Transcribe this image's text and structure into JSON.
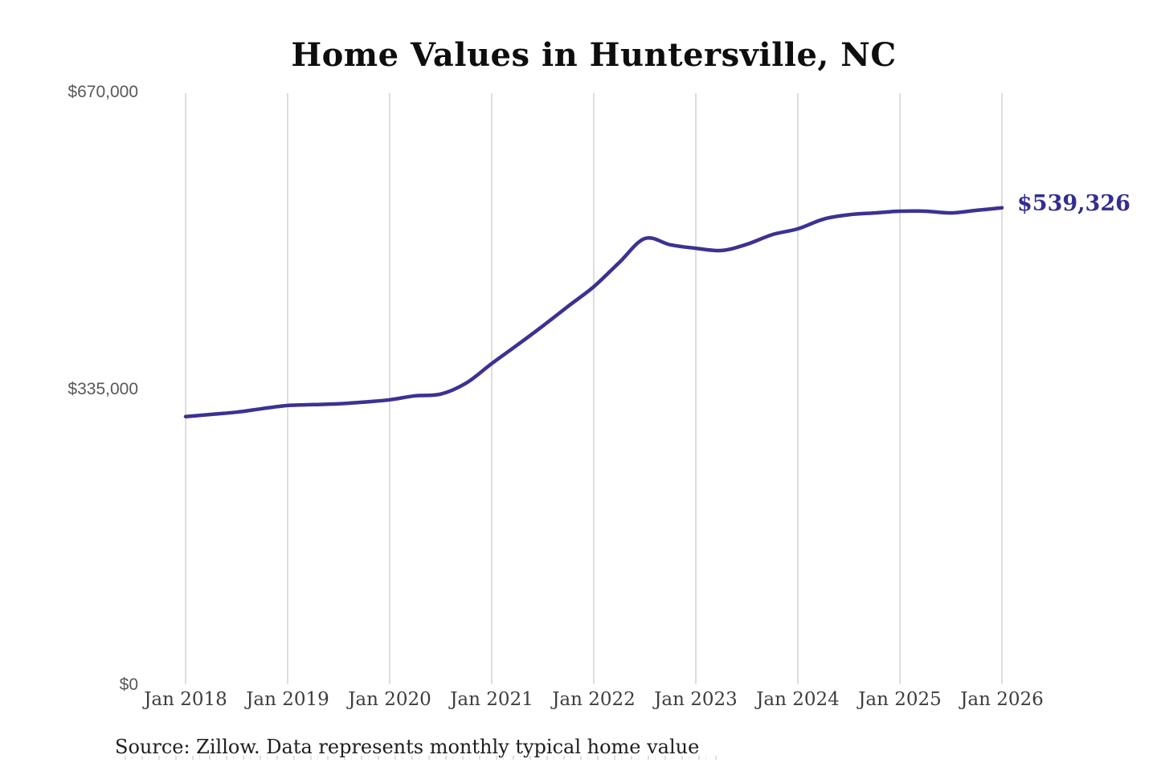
{
  "title": "Home Values in Huntersville, NC",
  "annotation": {
    "label": "$539,326"
  },
  "source": "Source: Zillow. Data represents monthly typical home value",
  "colors": {
    "line": "#3b3292",
    "annotation": "#332e90",
    "gridline": "#cccccc",
    "y_label": "#57585b",
    "x_label": "#3d3e40",
    "title": "#0e0e0e"
  },
  "y_axis": {
    "labels": [
      "$670,000",
      "$335,000",
      "$0"
    ]
  },
  "x_axis": {
    "labels": [
      "Jan 2018",
      "Jan 2019",
      "Jan 2020",
      "Jan 2021",
      "Jan 2022",
      "Jan 2023",
      "Jan 2024",
      "Jan 2025",
      "Jan 2026"
    ]
  },
  "chart_data": {
    "type": "line",
    "title": "Home Values in Huntersville, NC",
    "x": [
      "Jan 2018",
      "Apr 2018",
      "Jul 2018",
      "Oct 2018",
      "Jan 2019",
      "Apr 2019",
      "Jul 2019",
      "Oct 2019",
      "Jan 2020",
      "Apr 2020",
      "Jul 2020",
      "Oct 2020",
      "Jan 2021",
      "Apr 2021",
      "Jul 2021",
      "Oct 2021",
      "Jan 2022",
      "Apr 2022",
      "Jul 2022",
      "Oct 2022",
      "Jan 2023",
      "Apr 2023",
      "Jul 2023",
      "Oct 2023",
      "Jan 2024",
      "Apr 2024",
      "Jul 2024",
      "Oct 2024",
      "Jan 2025",
      "Apr 2025",
      "Jul 2025",
      "Oct 2025",
      "Jan 2026"
    ],
    "values": [
      303000,
      305500,
      308000,
      312000,
      315500,
      316500,
      317500,
      319500,
      322000,
      326500,
      328500,
      341000,
      363000,
      384000,
      405500,
      428000,
      450000,
      477500,
      504500,
      497500,
      493500,
      491000,
      498000,
      509000,
      515500,
      526500,
      531500,
      533500,
      535500,
      535500,
      533500,
      536500,
      539326
    ],
    "ylim": [
      0,
      670000
    ],
    "y_ticks": [
      "$0",
      "$335,000",
      "$670,000"
    ],
    "x_ticks": [
      "Jan 2018",
      "Jan 2019",
      "Jan 2020",
      "Jan 2021",
      "Jan 2022",
      "Jan 2023",
      "Jan 2024",
      "Jan 2025",
      "Jan 2026"
    ],
    "grid": "vertical-only",
    "legend": "none",
    "line_color": "#3b3292",
    "end_label": "$539,326",
    "end_value": 539326,
    "unit": "USD",
    "frequency_note": "monthly typical home value"
  }
}
